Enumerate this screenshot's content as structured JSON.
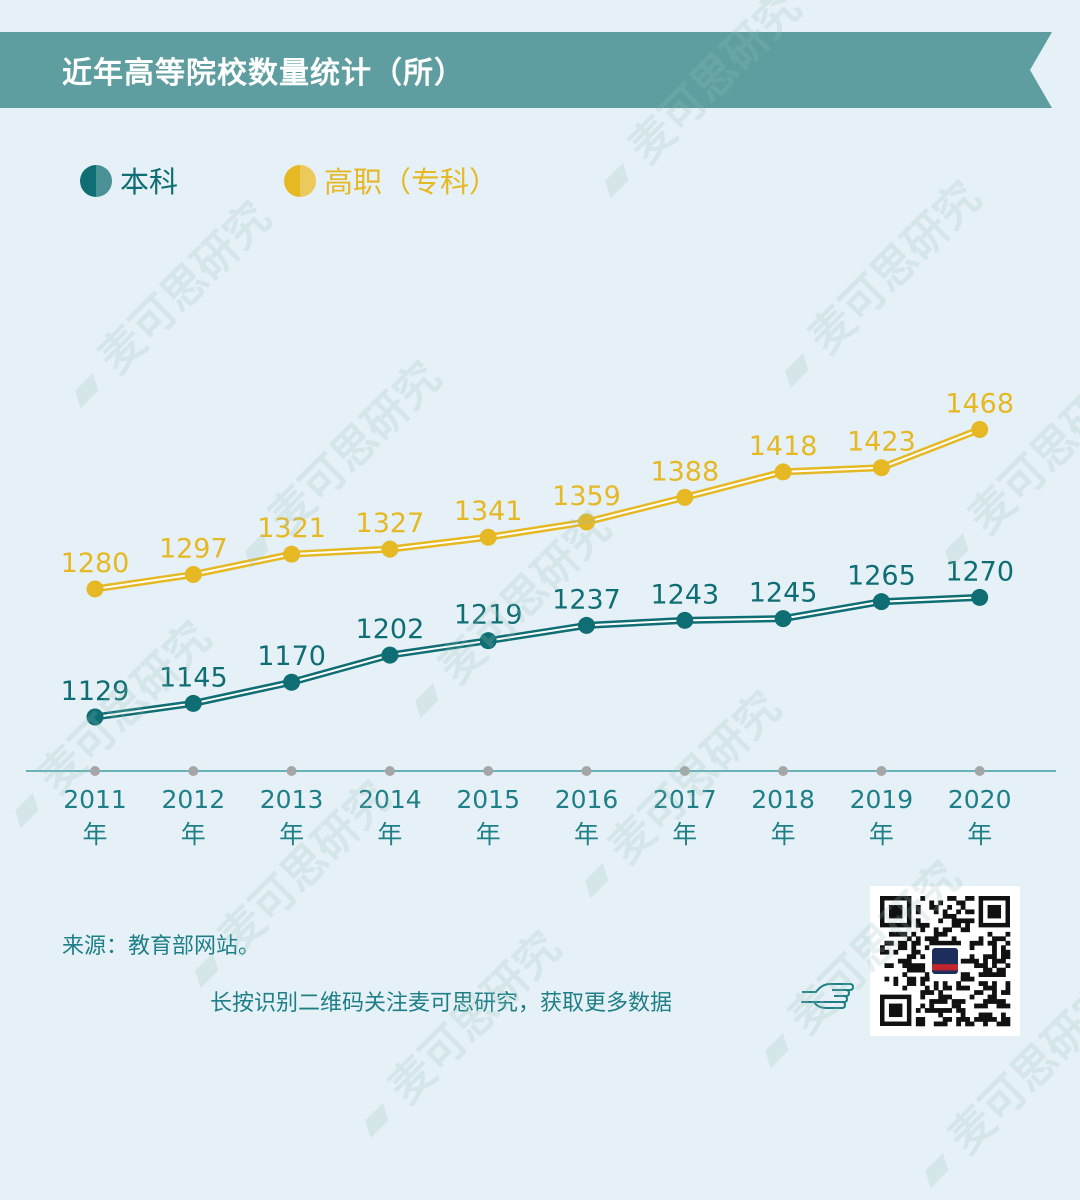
{
  "title": "近年高等院校数量统计（所）",
  "colors": {
    "background": "#e6f1f7",
    "banner": "#5e9ea0",
    "benke": "#0f6e73",
    "gaozhi": "#e5b824",
    "axis": "#3f9ea3",
    "text": "#1f7f86"
  },
  "chart_data": {
    "type": "line",
    "x": [
      "2011",
      "2012",
      "2013",
      "2014",
      "2015",
      "2016",
      "2017",
      "2018",
      "2019",
      "2020"
    ],
    "x_suffix": "年",
    "series": [
      {
        "name": "本科",
        "values": [
          1129,
          1145,
          1170,
          1202,
          1219,
          1237,
          1243,
          1245,
          1265,
          1270
        ]
      },
      {
        "name": "高职（专科）",
        "values": [
          1280,
          1297,
          1321,
          1327,
          1341,
          1359,
          1388,
          1418,
          1423,
          1468
        ]
      }
    ],
    "legend_position": "top-left",
    "grid": false
  },
  "source": "来源：教育部网站。",
  "cta": "长按识别二维码关注麦可思研究，获取更多数据",
  "watermark": "麦可思研究",
  "icons": [
    "pointing-hand-icon",
    "qr-code"
  ]
}
